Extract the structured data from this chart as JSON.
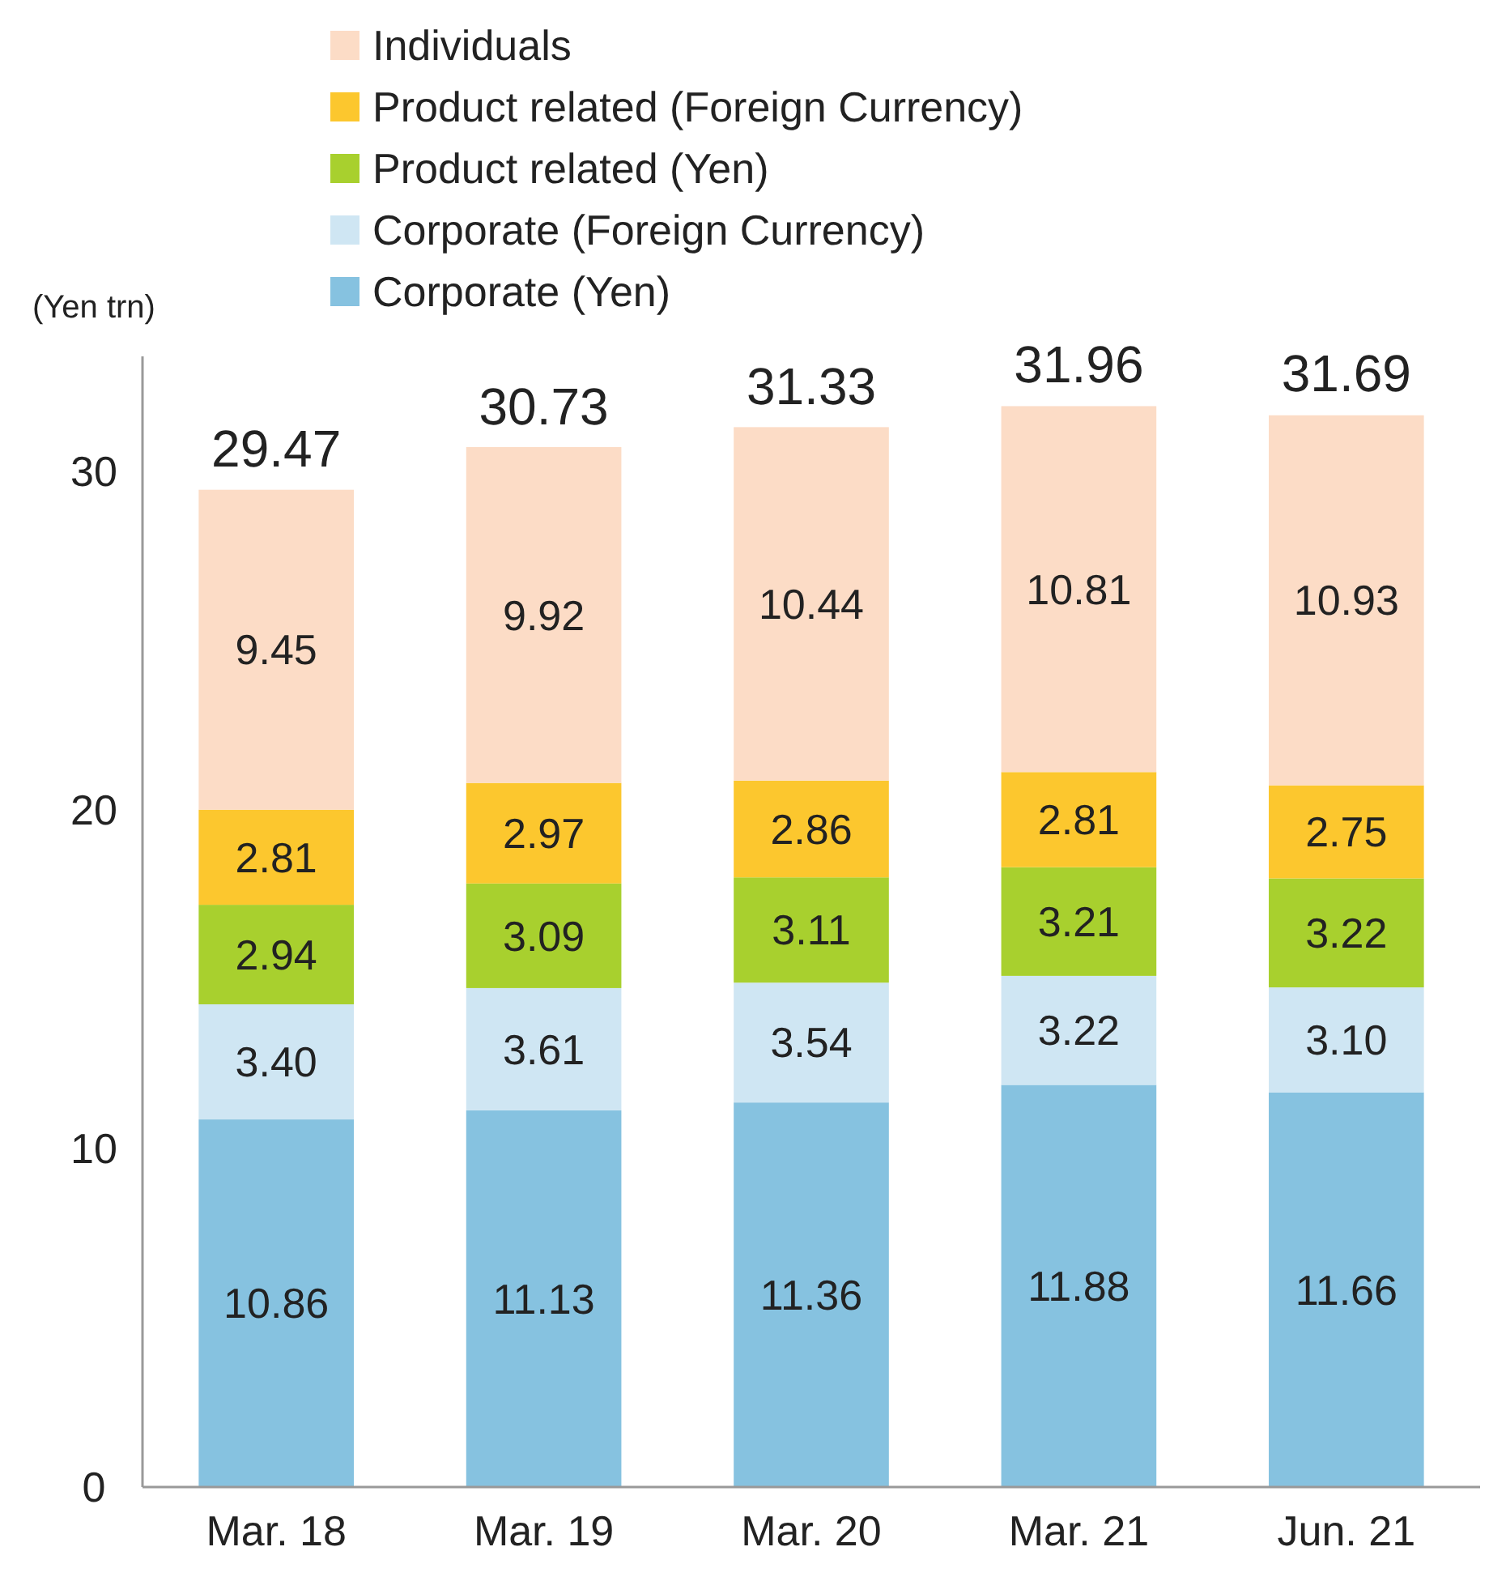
{
  "chart_data": {
    "type": "bar",
    "stacked": true,
    "ylabel": "(Yen trn)",
    "categories": [
      "Mar. 18",
      "Mar. 19",
      "Mar. 20",
      "Mar. 21",
      "Jun. 21"
    ],
    "series": [
      {
        "name": "Corporate (Yen)",
        "color": "#86c2e0",
        "values": [
          10.86,
          11.13,
          11.36,
          11.88,
          11.66
        ],
        "value_labels": [
          "10.86",
          "11.13",
          "11.36",
          "11.88",
          "11.66"
        ]
      },
      {
        "name": "Corporate (Foreign Currency)",
        "color": "#cfe6f3",
        "values": [
          3.4,
          3.61,
          3.54,
          3.22,
          3.1
        ],
        "value_labels": [
          "3.40",
          "3.61",
          "3.54",
          "3.22",
          "3.10"
        ]
      },
      {
        "name": "Product related (Yen)",
        "color": "#a8d02e",
        "values": [
          2.94,
          3.09,
          3.11,
          3.21,
          3.22
        ],
        "value_labels": [
          "2.94",
          "3.09",
          "3.11",
          "3.21",
          "3.22"
        ]
      },
      {
        "name": "Product related (Foreign Currency)",
        "color": "#fcc72e",
        "values": [
          2.81,
          2.97,
          2.86,
          2.81,
          2.75
        ],
        "value_labels": [
          "2.81",
          "2.97",
          "2.86",
          "2.81",
          "2.75"
        ]
      },
      {
        "name": "Individuals",
        "color": "#fcdcc6",
        "values": [
          9.45,
          9.92,
          10.44,
          10.81,
          10.93
        ],
        "value_labels": [
          "9.45",
          "9.92",
          "10.44",
          "10.81",
          "10.93"
        ]
      }
    ],
    "annotations": [
      {
        "text": "29.47",
        "x": "Mar. 18",
        "y": 29.47
      },
      {
        "text": "30.73",
        "x": "Mar. 19",
        "y": 30.73
      },
      {
        "text": "31.33",
        "x": "Mar. 20",
        "y": 31.33
      },
      {
        "text": "31.96",
        "x": "Mar. 21",
        "y": 31.96
      },
      {
        "text": "31.69",
        "x": "Jun. 21",
        "y": 31.69
      }
    ],
    "ylim": [
      0,
      33.4
    ],
    "yticks": [
      0,
      10,
      20,
      30
    ],
    "grid": false,
    "legend": "top"
  }
}
